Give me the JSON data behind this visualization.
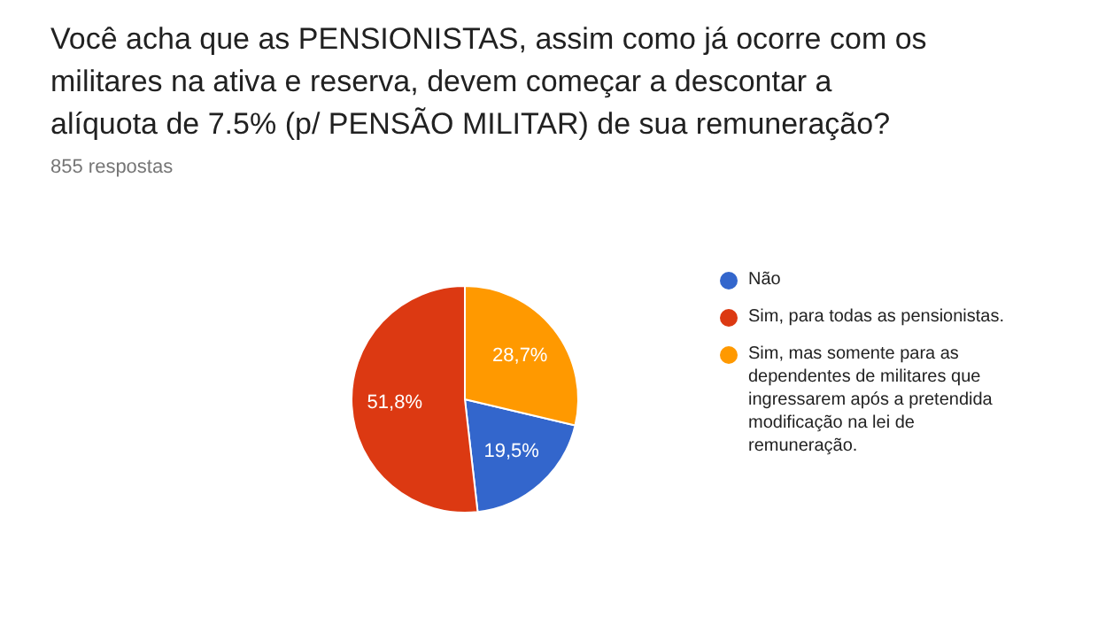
{
  "chart_data": {
    "type": "pie",
    "title": "Você acha que as PENSIONISTAS, assim como já ocorre com os militares na ativa e reserva, devem começar a descontar a alíquota de 7.5% (p/ PENSÃO MILITAR) de sua remuneração?",
    "subtitle": "855 respostas",
    "categories": [
      "Não",
      "Sim, para todas as pensionistas.",
      "Sim, mas somente para as dependentes de militares que ingressarem após a pretendida modificação na lei de remuneração."
    ],
    "values": [
      19.5,
      51.8,
      28.7
    ],
    "colors": [
      "#3366cc",
      "#dc3912",
      "#ff9900"
    ],
    "value_labels": [
      "19,5%",
      "51,8%",
      "28,7%"
    ],
    "legend": "right"
  }
}
